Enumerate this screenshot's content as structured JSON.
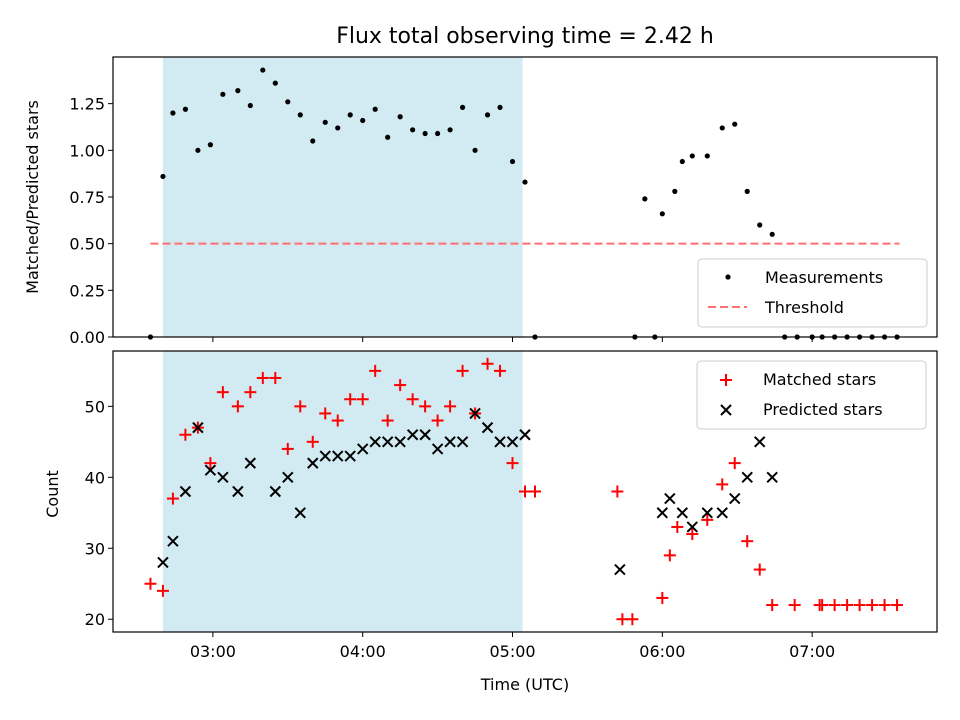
{
  "title": "Flux total observing time = 2.42 h",
  "chart_data": [
    {
      "type": "scatter",
      "ylabel": "Matched/Predicted stars",
      "xlabel": "",
      "xlim": [
        "02:20",
        "07:50"
      ],
      "ylim": [
        0,
        1.5
      ],
      "yticks": [
        "0.00",
        "0.25",
        "0.50",
        "0.75",
        "1.00",
        "1.25"
      ],
      "shaded_span": [
        "02:40",
        "05:04"
      ],
      "threshold": {
        "y": 0.5,
        "x_start": "02:35",
        "x_end": "07:35"
      },
      "legend": {
        "position": "lower-right",
        "entries": [
          "Measurements",
          "Threshold"
        ]
      },
      "series": [
        {
          "name": "Measurements",
          "marker": "dot",
          "x": [
            "02:35",
            "02:40",
            "02:44",
            "02:49",
            "02:54",
            "02:59",
            "03:04",
            "03:10",
            "03:15",
            "03:20",
            "03:25",
            "03:30",
            "03:35",
            "03:40",
            "03:45",
            "03:50",
            "03:55",
            "04:00",
            "04:05",
            "04:10",
            "04:15",
            "04:20",
            "04:25",
            "04:30",
            "04:35",
            "04:40",
            "04:45",
            "04:50",
            "04:55",
            "05:00",
            "05:05",
            "05:09",
            "05:49",
            "05:53",
            "05:57",
            "06:00",
            "06:05",
            "06:08",
            "06:12",
            "06:18",
            "06:24",
            "06:29",
            "06:34",
            "06:39",
            "06:44",
            "06:49",
            "06:54",
            "07:00",
            "07:04",
            "07:09",
            "07:14",
            "07:19",
            "07:24",
            "07:29",
            "07:34"
          ],
          "y": [
            0.0,
            0.86,
            1.2,
            1.22,
            1.0,
            1.03,
            1.3,
            1.32,
            1.24,
            1.43,
            1.36,
            1.26,
            1.19,
            1.05,
            1.15,
            1.12,
            1.19,
            1.16,
            1.22,
            1.07,
            1.18,
            1.11,
            1.09,
            1.09,
            1.11,
            1.23,
            1.0,
            1.19,
            1.23,
            0.94,
            0.83,
            0.0,
            0.0,
            0.74,
            0.0,
            0.66,
            0.78,
            0.94,
            0.97,
            0.97,
            1.12,
            1.14,
            0.78,
            0.6,
            0.55,
            0.0,
            0.0,
            0.0,
            0.0,
            0.0,
            0.0,
            0.0,
            0.0,
            0.0,
            0.0
          ]
        }
      ],
      "colors": {
        "measurements": "#000000",
        "threshold": "#ff6f6f",
        "shade": "#add8e6"
      }
    },
    {
      "type": "scatter",
      "ylabel": "Count",
      "xlabel": "Time (UTC)",
      "xlim": [
        "02:20",
        "07:50"
      ],
      "ylim": [
        18.2,
        57.8
      ],
      "yticks": [
        "20",
        "30",
        "40",
        "50"
      ],
      "xticks": [
        "03:00",
        "04:00",
        "05:00",
        "06:00",
        "07:00"
      ],
      "shaded_span": [
        "02:40",
        "05:04"
      ],
      "legend": {
        "position": "top-right",
        "entries": [
          "Matched stars",
          "Predicted stars"
        ]
      },
      "series": [
        {
          "name": "Matched stars",
          "marker": "plus",
          "x": [
            "02:35",
            "02:40",
            "02:44",
            "02:49",
            "02:54",
            "02:59",
            "03:04",
            "03:10",
            "03:15",
            "03:20",
            "03:25",
            "03:30",
            "03:35",
            "03:40",
            "03:45",
            "03:50",
            "03:55",
            "04:00",
            "04:05",
            "04:10",
            "04:15",
            "04:20",
            "04:25",
            "04:30",
            "04:35",
            "04:40",
            "04:45",
            "04:50",
            "04:55",
            "05:00",
            "05:05",
            "05:09",
            "05:42",
            "05:44",
            "05:48",
            "06:00",
            "06:03",
            "06:06",
            "06:12",
            "06:18",
            "06:24",
            "06:29",
            "06:34",
            "06:39",
            "06:44",
            "06:53",
            "07:03",
            "07:04",
            "07:09",
            "07:14",
            "07:19",
            "07:24",
            "07:29",
            "07:34"
          ],
          "y": [
            25,
            24,
            37,
            46,
            47,
            42,
            52,
            50,
            52,
            54,
            54,
            44,
            50,
            45,
            49,
            48,
            51,
            51,
            55,
            48,
            53,
            51,
            50,
            48,
            50,
            55,
            49,
            56,
            55,
            42,
            38,
            38,
            38,
            20,
            20,
            23,
            29,
            33,
            32,
            34,
            39,
            42,
            31,
            27,
            22,
            22,
            22,
            22,
            22,
            22,
            22,
            22,
            22,
            22
          ]
        },
        {
          "name": "Predicted stars",
          "marker": "x",
          "x": [
            "02:40",
            "02:44",
            "02:49",
            "02:54",
            "02:59",
            "03:04",
            "03:10",
            "03:15",
            "03:25",
            "03:30",
            "03:35",
            "03:40",
            "03:45",
            "03:50",
            "03:55",
            "04:00",
            "04:05",
            "04:10",
            "04:15",
            "04:20",
            "04:25",
            "04:30",
            "04:35",
            "04:40",
            "04:45",
            "04:50",
            "04:55",
            "05:00",
            "05:05",
            "05:43",
            "06:00",
            "06:03",
            "06:08",
            "06:12",
            "06:18",
            "06:24",
            "06:29",
            "06:34",
            "06:39",
            "06:44"
          ],
          "y": [
            28,
            31,
            38,
            47,
            41,
            40,
            38,
            42,
            38,
            40,
            35,
            42,
            43,
            43,
            43,
            44,
            45,
            45,
            45,
            46,
            46,
            44,
            45,
            45,
            49,
            47,
            45,
            45,
            46,
            27,
            35,
            37,
            35,
            33,
            35,
            35,
            37,
            40,
            45,
            40
          ]
        }
      ],
      "colors": {
        "matched": "#ff0000",
        "predicted": "#000000",
        "shade": "#add8e6"
      }
    }
  ]
}
